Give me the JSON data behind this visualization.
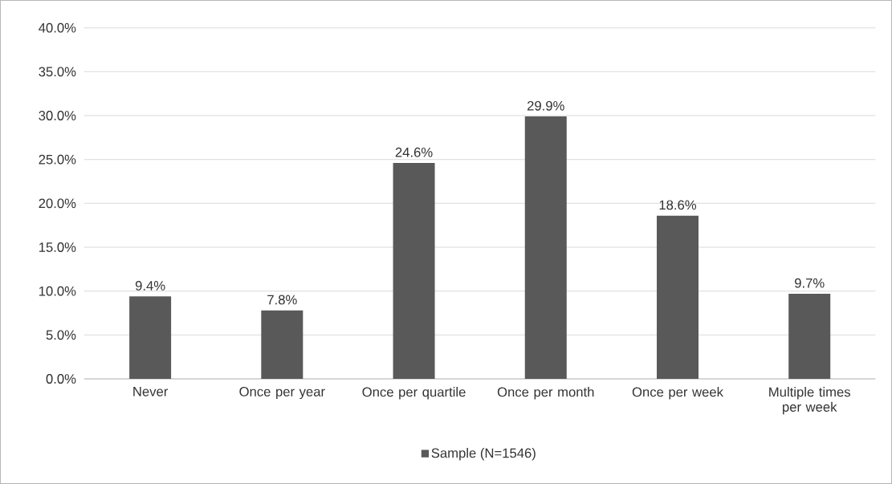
{
  "chart_data": {
    "type": "bar",
    "categories": [
      "Never",
      "Once per year",
      "Once per quartile",
      "Once per month",
      "Once per week",
      "Multiple times per week"
    ],
    "series": [
      {
        "name": "Sample (N=1546)",
        "color": "#595959",
        "values": [
          9.4,
          7.8,
          24.6,
          29.9,
          18.6,
          9.7
        ],
        "value_labels": [
          "9.4%",
          "7.8%",
          "24.6%",
          "29.9%",
          "18.6%",
          "9.7%"
        ]
      }
    ],
    "ylim": [
      0,
      40
    ],
    "yticks": [
      {
        "value": 0,
        "label": "0.0%"
      },
      {
        "value": 5,
        "label": "5.0%"
      },
      {
        "value": 10,
        "label": "10.0%"
      },
      {
        "value": 15,
        "label": "15.0%"
      },
      {
        "value": 20,
        "label": "20.0%"
      },
      {
        "value": 25,
        "label": "25.0%"
      },
      {
        "value": 30,
        "label": "30.0%"
      },
      {
        "value": 35,
        "label": "35.0%"
      },
      {
        "value": 40,
        "label": "40.0%"
      }
    ],
    "grid": "y",
    "legend": "bottom"
  }
}
